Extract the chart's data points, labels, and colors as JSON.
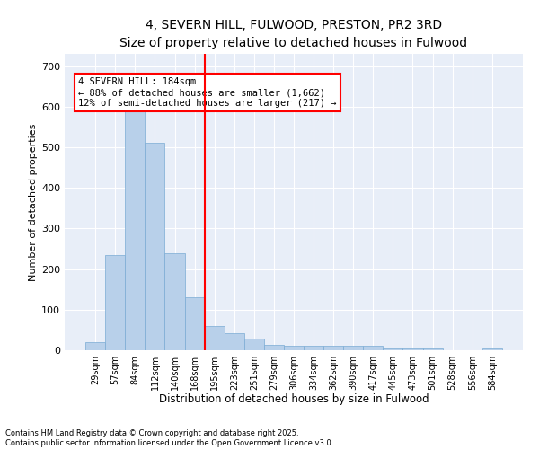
{
  "title": "4, SEVERN HILL, FULWOOD, PRESTON, PR2 3RD",
  "subtitle": "Size of property relative to detached houses in Fulwood",
  "xlabel": "Distribution of detached houses by size in Fulwood",
  "ylabel": "Number of detached properties",
  "categories": [
    "29sqm",
    "57sqm",
    "84sqm",
    "112sqm",
    "140sqm",
    "168sqm",
    "195sqm",
    "223sqm",
    "251sqm",
    "279sqm",
    "306sqm",
    "334sqm",
    "362sqm",
    "390sqm",
    "417sqm",
    "445sqm",
    "473sqm",
    "501sqm",
    "528sqm",
    "556sqm",
    "584sqm"
  ],
  "values": [
    20,
    234,
    590,
    510,
    240,
    130,
    60,
    42,
    28,
    14,
    10,
    10,
    10,
    10,
    10,
    5,
    5,
    5,
    0,
    0,
    5
  ],
  "bar_color": "#b8d0ea",
  "bar_edge_color": "#7aabd4",
  "vline_color": "red",
  "annotation_text": "4 SEVERN HILL: 184sqm\n← 88% of detached houses are smaller (1,662)\n12% of semi-detached houses are larger (217) →",
  "annotation_box_color": "white",
  "annotation_box_edge_color": "red",
  "ylim": [
    0,
    730
  ],
  "yticks": [
    0,
    100,
    200,
    300,
    400,
    500,
    600,
    700
  ],
  "bg_color": "#e8eef8",
  "footer_text": "Contains HM Land Registry data © Crown copyright and database right 2025.\nContains public sector information licensed under the Open Government Licence v3.0.",
  "title_fontsize": 10,
  "xlabel_fontsize": 8.5,
  "ylabel_fontsize": 8
}
